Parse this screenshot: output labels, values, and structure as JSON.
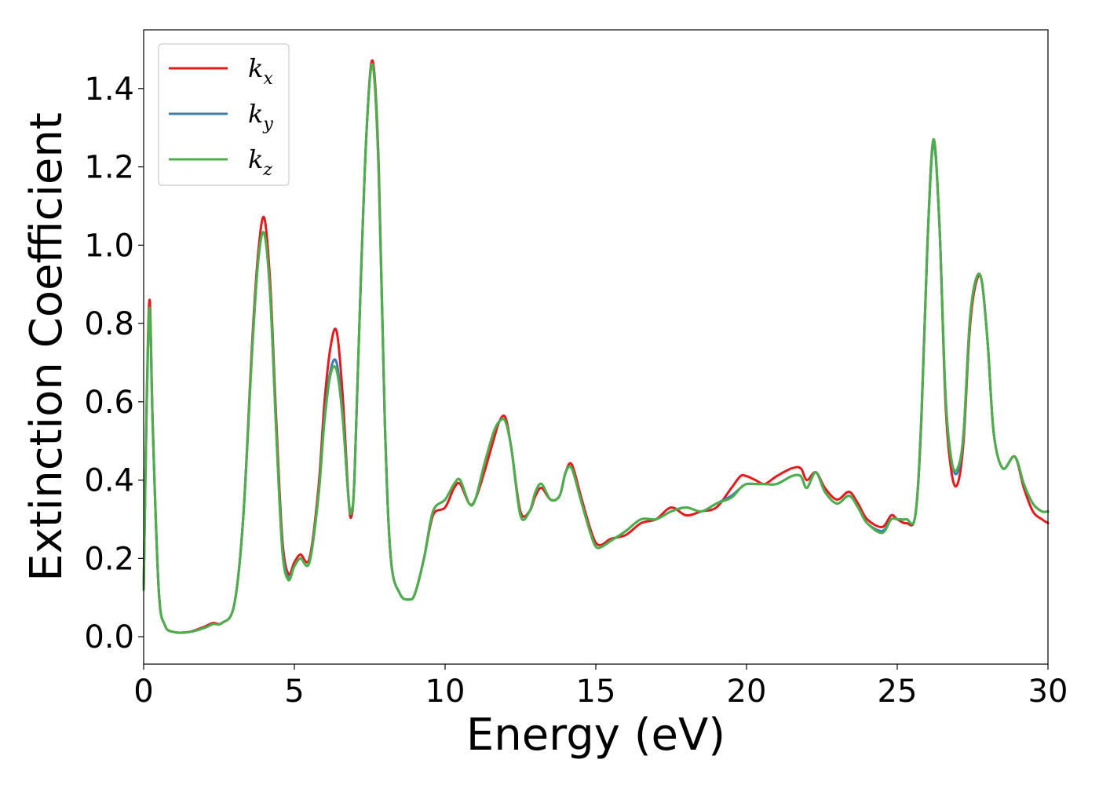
{
  "chart_data": {
    "type": "line",
    "title": "",
    "xlabel": "Energy (eV)",
    "ylabel": "Extinction Coefficient",
    "xlim": [
      0,
      30
    ],
    "ylim": [
      -0.07,
      1.55
    ],
    "xticks": [
      0,
      5,
      10,
      15,
      20,
      25,
      30
    ],
    "xtick_labels": [
      "0",
      "5",
      "10",
      "15",
      "20",
      "25",
      "30"
    ],
    "yticks": [
      0.0,
      0.2,
      0.4,
      0.6,
      0.8,
      1.0,
      1.2,
      1.4
    ],
    "ytick_labels": [
      "0.0",
      "0.2",
      "0.4",
      "0.6",
      "0.8",
      "1.0",
      "1.2",
      "1.4"
    ],
    "grid": false,
    "legend_position": "top-left",
    "series": [
      {
        "name": "k",
        "subscript": "x",
        "color": "#e41a1c",
        "x": [
          0.0,
          0.1,
          0.2,
          0.3,
          0.5,
          0.7,
          1.0,
          1.5,
          2.0,
          2.3,
          2.6,
          3.0,
          3.3,
          3.6,
          3.8,
          4.0,
          4.2,
          4.4,
          4.6,
          4.8,
          5.0,
          5.2,
          5.5,
          5.8,
          6.0,
          6.2,
          6.4,
          6.6,
          6.8,
          6.9,
          7.0,
          7.2,
          7.4,
          7.6,
          7.8,
          8.0,
          8.2,
          8.5,
          8.8,
          9.0,
          9.3,
          9.6,
          10.0,
          10.3,
          10.5,
          10.8,
          11.0,
          11.3,
          11.6,
          11.8,
          12.0,
          12.2,
          12.5,
          12.8,
          13.0,
          13.2,
          13.5,
          13.8,
          14.0,
          14.2,
          14.5,
          14.8,
          15.0,
          15.2,
          15.5,
          16.0,
          16.5,
          17.0,
          17.5,
          18.0,
          18.5,
          19.0,
          19.5,
          19.8,
          20.0,
          20.3,
          20.6,
          21.0,
          21.5,
          21.8,
          22.0,
          22.3,
          22.6,
          23.0,
          23.4,
          23.7,
          24.0,
          24.5,
          24.8,
          25.0,
          25.3,
          25.6,
          25.8,
          26.0,
          26.2,
          26.4,
          26.6,
          26.8,
          27.0,
          27.2,
          27.4,
          27.6,
          27.8,
          28.0,
          28.2,
          28.5,
          28.9,
          29.2,
          29.5,
          29.8,
          30.0
        ],
        "y": [
          0.12,
          0.6,
          0.86,
          0.55,
          0.12,
          0.03,
          0.012,
          0.012,
          0.025,
          0.035,
          0.035,
          0.08,
          0.3,
          0.75,
          0.98,
          1.07,
          0.9,
          0.55,
          0.25,
          0.16,
          0.19,
          0.21,
          0.2,
          0.38,
          0.6,
          0.74,
          0.78,
          0.62,
          0.35,
          0.31,
          0.42,
          0.9,
          1.3,
          1.47,
          1.2,
          0.55,
          0.2,
          0.11,
          0.095,
          0.11,
          0.2,
          0.31,
          0.33,
          0.38,
          0.39,
          0.34,
          0.35,
          0.42,
          0.5,
          0.55,
          0.56,
          0.48,
          0.32,
          0.32,
          0.36,
          0.38,
          0.35,
          0.36,
          0.42,
          0.44,
          0.36,
          0.28,
          0.24,
          0.235,
          0.25,
          0.26,
          0.29,
          0.3,
          0.33,
          0.31,
          0.32,
          0.33,
          0.38,
          0.41,
          0.41,
          0.4,
          0.39,
          0.41,
          0.43,
          0.43,
          0.4,
          0.42,
          0.38,
          0.35,
          0.37,
          0.34,
          0.3,
          0.28,
          0.31,
          0.3,
          0.29,
          0.31,
          0.55,
          1.0,
          1.27,
          1.05,
          0.6,
          0.42,
          0.39,
          0.5,
          0.78,
          0.9,
          0.91,
          0.75,
          0.52,
          0.43,
          0.46,
          0.38,
          0.32,
          0.3,
          0.29
        ]
      },
      {
        "name": "k",
        "subscript": "y",
        "color": "#377eb8",
        "x": [
          0.0,
          0.1,
          0.2,
          0.3,
          0.5,
          0.7,
          1.0,
          1.5,
          2.0,
          2.3,
          2.6,
          3.0,
          3.3,
          3.6,
          3.8,
          4.0,
          4.2,
          4.4,
          4.6,
          4.8,
          5.0,
          5.2,
          5.5,
          5.8,
          6.0,
          6.2,
          6.4,
          6.6,
          6.8,
          6.9,
          7.0,
          7.2,
          7.4,
          7.6,
          7.8,
          8.0,
          8.2,
          8.5,
          8.8,
          9.0,
          9.3,
          9.6,
          10.0,
          10.3,
          10.5,
          10.8,
          11.0,
          11.3,
          11.6,
          11.8,
          12.0,
          12.2,
          12.5,
          12.8,
          13.0,
          13.2,
          13.5,
          13.8,
          14.0,
          14.2,
          14.5,
          14.8,
          15.0,
          15.2,
          15.5,
          16.0,
          16.5,
          17.0,
          17.5,
          18.0,
          18.5,
          19.0,
          19.5,
          19.8,
          20.0,
          20.3,
          20.6,
          21.0,
          21.5,
          21.8,
          22.0,
          22.3,
          22.6,
          23.0,
          23.4,
          23.7,
          24.0,
          24.5,
          24.8,
          25.0,
          25.3,
          25.6,
          25.8,
          26.0,
          26.2,
          26.4,
          26.6,
          26.8,
          27.0,
          27.2,
          27.4,
          27.6,
          27.8,
          28.0,
          28.2,
          28.5,
          28.9,
          29.2,
          29.5,
          29.8,
          30.0
        ],
        "y": [
          0.12,
          0.58,
          0.84,
          0.54,
          0.12,
          0.03,
          0.012,
          0.012,
          0.022,
          0.032,
          0.035,
          0.08,
          0.3,
          0.73,
          0.96,
          1.03,
          0.87,
          0.52,
          0.23,
          0.15,
          0.18,
          0.2,
          0.19,
          0.36,
          0.56,
          0.68,
          0.7,
          0.57,
          0.35,
          0.32,
          0.42,
          0.9,
          1.3,
          1.46,
          1.18,
          0.55,
          0.2,
          0.11,
          0.095,
          0.11,
          0.2,
          0.32,
          0.35,
          0.39,
          0.4,
          0.34,
          0.35,
          0.44,
          0.52,
          0.55,
          0.55,
          0.48,
          0.31,
          0.32,
          0.37,
          0.39,
          0.35,
          0.36,
          0.42,
          0.43,
          0.35,
          0.27,
          0.23,
          0.23,
          0.245,
          0.27,
          0.3,
          0.3,
          0.32,
          0.33,
          0.32,
          0.34,
          0.36,
          0.38,
          0.39,
          0.39,
          0.39,
          0.39,
          0.41,
          0.41,
          0.38,
          0.42,
          0.37,
          0.34,
          0.36,
          0.33,
          0.29,
          0.27,
          0.3,
          0.3,
          0.3,
          0.31,
          0.56,
          1.0,
          1.26,
          1.05,
          0.62,
          0.45,
          0.42,
          0.52,
          0.8,
          0.91,
          0.91,
          0.75,
          0.52,
          0.43,
          0.46,
          0.39,
          0.34,
          0.32,
          0.32
        ]
      },
      {
        "name": "k",
        "subscript": "z",
        "color": "#4daf4a",
        "x": [
          0.0,
          0.1,
          0.2,
          0.3,
          0.5,
          0.7,
          1.0,
          1.5,
          2.0,
          2.3,
          2.6,
          3.0,
          3.3,
          3.6,
          3.8,
          4.0,
          4.2,
          4.4,
          4.6,
          4.8,
          5.0,
          5.2,
          5.5,
          5.8,
          6.0,
          6.2,
          6.4,
          6.6,
          6.8,
          6.9,
          7.0,
          7.2,
          7.4,
          7.6,
          7.8,
          8.0,
          8.2,
          8.5,
          8.8,
          9.0,
          9.3,
          9.6,
          10.0,
          10.3,
          10.5,
          10.8,
          11.0,
          11.3,
          11.6,
          11.8,
          12.0,
          12.2,
          12.5,
          12.8,
          13.0,
          13.2,
          13.5,
          13.8,
          14.0,
          14.2,
          14.5,
          14.8,
          15.0,
          15.2,
          15.5,
          16.0,
          16.5,
          17.0,
          17.5,
          18.0,
          18.5,
          19.0,
          19.5,
          19.8,
          20.0,
          20.3,
          20.6,
          21.0,
          21.5,
          21.8,
          22.0,
          22.3,
          22.6,
          23.0,
          23.4,
          23.7,
          24.0,
          24.5,
          24.8,
          25.0,
          25.3,
          25.6,
          25.8,
          26.0,
          26.2,
          26.4,
          26.6,
          26.8,
          27.0,
          27.2,
          27.4,
          27.6,
          27.8,
          28.0,
          28.2,
          28.5,
          28.9,
          29.2,
          29.5,
          29.8,
          30.0
        ],
        "y": [
          0.12,
          0.58,
          0.84,
          0.54,
          0.12,
          0.03,
          0.012,
          0.012,
          0.022,
          0.032,
          0.035,
          0.08,
          0.3,
          0.73,
          0.96,
          1.03,
          0.87,
          0.52,
          0.22,
          0.145,
          0.18,
          0.2,
          0.19,
          0.36,
          0.55,
          0.67,
          0.68,
          0.56,
          0.35,
          0.32,
          0.42,
          0.9,
          1.3,
          1.46,
          1.18,
          0.55,
          0.2,
          0.11,
          0.095,
          0.11,
          0.2,
          0.32,
          0.35,
          0.39,
          0.4,
          0.34,
          0.35,
          0.44,
          0.52,
          0.55,
          0.55,
          0.48,
          0.31,
          0.32,
          0.37,
          0.39,
          0.35,
          0.36,
          0.42,
          0.43,
          0.35,
          0.27,
          0.23,
          0.23,
          0.245,
          0.27,
          0.3,
          0.3,
          0.32,
          0.33,
          0.32,
          0.34,
          0.355,
          0.38,
          0.39,
          0.39,
          0.39,
          0.39,
          0.41,
          0.41,
          0.38,
          0.42,
          0.37,
          0.34,
          0.36,
          0.33,
          0.29,
          0.265,
          0.3,
          0.3,
          0.3,
          0.31,
          0.56,
          1.0,
          1.27,
          1.05,
          0.62,
          0.45,
          0.43,
          0.52,
          0.8,
          0.91,
          0.91,
          0.75,
          0.52,
          0.43,
          0.46,
          0.39,
          0.34,
          0.32,
          0.32
        ]
      }
    ]
  }
}
